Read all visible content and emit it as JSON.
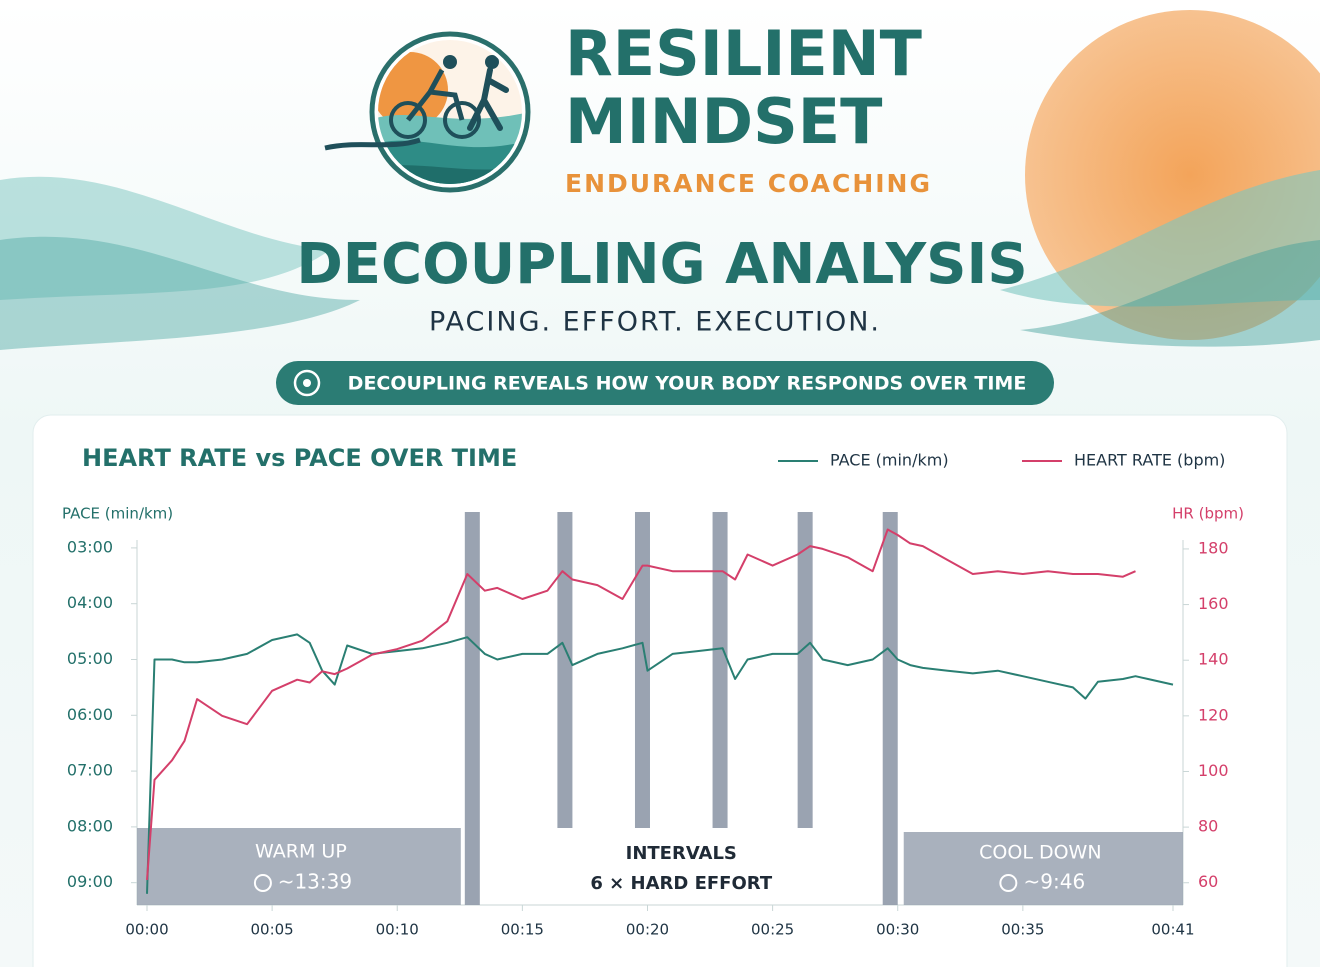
{
  "header": {
    "brand_line1": "RESILIENT",
    "brand_line2": "MINDSET",
    "brand_tagline": "ENDURANCE COACHING",
    "title": "DECOUPLING ANALYSIS",
    "subtitle": "PACING. EFFORT. EXECUTION.",
    "banner": "DECOUPLING REVEALS HOW YOUR BODY RESPONDS OVER TIME"
  },
  "chart_data": {
    "type": "line",
    "title": "HEART RATE vs PACE OVER TIME",
    "y_label": "PACE (min/km)",
    "y2_label": "HR (bpm)",
    "x": [
      0,
      0.3,
      1,
      1.5,
      2,
      3,
      4,
      5,
      6,
      6.5,
      7,
      7.5,
      8,
      9,
      10,
      11,
      12,
      12.8,
      13.5,
      14,
      15,
      16,
      16.6,
      17,
      18,
      19,
      19.8,
      20,
      21,
      22,
      23,
      23.5,
      24,
      25,
      26,
      26.5,
      27,
      28,
      29,
      29.6,
      30,
      30.5,
      31,
      32,
      33,
      34,
      35,
      36,
      37,
      37.5,
      38,
      39,
      39.5,
      40,
      41
    ],
    "series": [
      {
        "name": "PACE (min/km)",
        "color": "#2a7f73",
        "values": [
          9.2,
          5.0,
          5.0,
          5.05,
          5.05,
          5.0,
          4.9,
          4.65,
          4.55,
          4.7,
          5.2,
          5.45,
          4.75,
          4.9,
          4.85,
          4.8,
          4.7,
          4.6,
          4.9,
          5.0,
          4.9,
          4.9,
          4.7,
          5.1,
          4.9,
          4.8,
          4.7,
          5.2,
          4.9,
          4.85,
          4.8,
          5.35,
          5.0,
          4.9,
          4.9,
          4.7,
          5.0,
          5.1,
          5.0,
          4.8,
          5.0,
          5.1,
          5.15,
          5.2,
          5.25,
          5.2,
          5.3,
          5.4,
          5.5,
          5.7,
          5.4,
          5.35,
          5.3,
          5.35,
          5.45
        ]
      },
      {
        "name": "HEART RATE (bpm)",
        "color": "#d43f6a",
        "axis": "y2",
        "values": [
          61,
          97,
          104,
          111,
          126,
          120,
          117,
          129,
          133,
          132,
          136,
          135,
          137,
          142,
          144,
          147,
          154,
          171,
          165,
          166,
          162,
          165,
          172,
          169,
          167,
          162,
          174,
          174,
          172,
          172,
          172,
          169,
          178,
          174,
          178,
          181,
          180,
          177,
          172,
          187,
          185,
          182,
          181,
          176,
          171,
          172,
          171,
          172,
          171,
          171,
          171,
          170,
          172,
          null,
          null
        ]
      }
    ],
    "xlim": [
      -0.4,
      41.4
    ],
    "xticks": [
      {
        "value": 0,
        "label": "00:00"
      },
      {
        "value": 5,
        "label": "00:05"
      },
      {
        "value": 10,
        "label": "00:10"
      },
      {
        "value": 15,
        "label": "00:15"
      },
      {
        "value": 20,
        "label": "00:20"
      },
      {
        "value": 25,
        "label": "00:25"
      },
      {
        "value": 30,
        "label": "00:30"
      },
      {
        "value": 35,
        "label": "00:35"
      },
      {
        "value": 41,
        "label": "00:41"
      }
    ],
    "ylim": [
      9.4,
      2.5
    ],
    "yticks": [
      {
        "value": 3,
        "label": "03:00"
      },
      {
        "value": 4,
        "label": "04:00"
      },
      {
        "value": 5,
        "label": "05:00"
      },
      {
        "value": 6,
        "label": "06:00"
      },
      {
        "value": 7,
        "label": "07:00"
      },
      {
        "value": 8,
        "label": "08:00"
      },
      {
        "value": 9,
        "label": "09:00"
      }
    ],
    "y2lim": [
      52,
      190.4
    ],
    "y2ticks": [
      60,
      80,
      100,
      120,
      140,
      160,
      180
    ],
    "legend": "top-right",
    "shaded_intervals": [
      [
        12.7,
        13.3
      ],
      [
        16.4,
        17.0
      ],
      [
        19.5,
        20.1
      ],
      [
        22.6,
        23.2
      ],
      [
        26.0,
        26.6
      ],
      [
        29.4,
        30.0
      ]
    ],
    "annotations": {
      "warm_up": "WARM UP",
      "warm_up_time": "~13:39",
      "intervals": "INTERVALS",
      "intervals_detail": "6 × HARD EFFORT",
      "cool_down": "COOL DOWN",
      "cool_down_time": "~9:46"
    }
  }
}
